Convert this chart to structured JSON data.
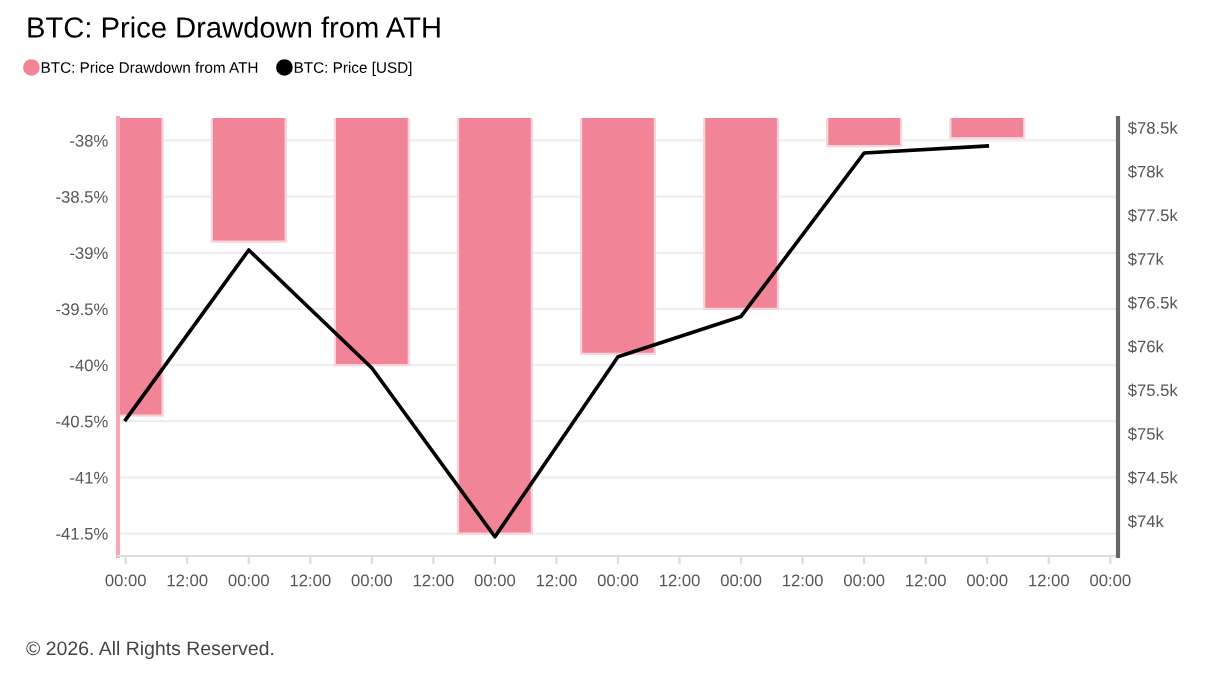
{
  "chart_data": {
    "type": "bar",
    "title": "BTC: Price Drawdown from ATH",
    "x": [
      "2026-01-01T00:00",
      "2026-01-02T00:00",
      "2026-01-03T00:00",
      "2026-01-04T00:00",
      "2026-01-05T00:00",
      "2026-01-06T00:00",
      "2026-01-07T00:00",
      "2026-01-08T00:00"
    ],
    "series": [
      {
        "name": "BTC: Price Drawdown from ATH",
        "color": "#f28497",
        "values": [
          -40.45,
          -38.9,
          -40.0,
          -41.5,
          -39.9,
          -39.5,
          -38.05,
          -37.98
        ]
      },
      {
        "name": "BTC: Price [USD]",
        "type": "line",
        "axis": "y2",
        "color": "#000000",
        "values": [
          75160,
          77100,
          75750,
          73820,
          75880,
          76340,
          78210,
          78290
        ]
      }
    ],
    "xlim": [
      "2025-12-31T22:30",
      "2026-01-09T01:30"
    ],
    "xticks": [
      {
        "value": "2026-01-01T00:00",
        "label": "00:00"
      },
      {
        "value": "2026-01-01T12:00",
        "label": "12:00"
      },
      {
        "value": "2026-01-02T00:00",
        "label": "00:00"
      },
      {
        "value": "2026-01-02T12:00",
        "label": "12:00"
      },
      {
        "value": "2026-01-03T00:00",
        "label": "00:00"
      },
      {
        "value": "2026-01-03T12:00",
        "label": "12:00"
      },
      {
        "value": "2026-01-04T00:00",
        "label": "00:00"
      },
      {
        "value": "2026-01-04T12:00",
        "label": "12:00"
      },
      {
        "value": "2026-01-05T00:00",
        "label": "00:00"
      },
      {
        "value": "2026-01-05T12:00",
        "label": "12:00"
      },
      {
        "value": "2026-01-06T00:00",
        "label": "00:00"
      },
      {
        "value": "2026-01-06T12:00",
        "label": "12:00"
      },
      {
        "value": "2026-01-07T00:00",
        "label": "00:00"
      },
      {
        "value": "2026-01-07T12:00",
        "label": "12:00"
      },
      {
        "value": "2026-01-08T00:00",
        "label": "00:00"
      },
      {
        "value": "2026-01-08T12:00",
        "label": "12:00"
      },
      {
        "value": "2026-01-09T00:00",
        "label": "00:00"
      }
    ],
    "ylim": [
      -41.7,
      -37.8
    ],
    "yticks": [
      {
        "value": -38,
        "label": "-38%"
      },
      {
        "value": -38.5,
        "label": "-38.5%"
      },
      {
        "value": -39,
        "label": "-39%"
      },
      {
        "value": -39.5,
        "label": "-39.5%"
      },
      {
        "value": -40,
        "label": "-40%"
      },
      {
        "value": -40.5,
        "label": "-40.5%"
      },
      {
        "value": -41,
        "label": "-41%"
      },
      {
        "value": -41.5,
        "label": "-41.5%"
      }
    ],
    "y2lim": [
      73600,
      78610
    ],
    "y2ticks": [
      {
        "value": 74000,
        "label": "$74k"
      },
      {
        "value": 74500,
        "label": "$74.5k"
      },
      {
        "value": 75000,
        "label": "$75k"
      },
      {
        "value": 75500,
        "label": "$75.5k"
      },
      {
        "value": 76000,
        "label": "$76k"
      },
      {
        "value": 76500,
        "label": "$76.5k"
      },
      {
        "value": 77000,
        "label": "$77k"
      },
      {
        "value": 77500,
        "label": "$77.5k"
      },
      {
        "value": 78000,
        "label": "$78k"
      },
      {
        "value": 78500,
        "label": "$78.5k"
      }
    ],
    "grid": "y",
    "legend": "top left",
    "marker": "none",
    "line_style": "solid",
    "annotations": [
      "© 2026. All Rights Reserved."
    ]
  }
}
